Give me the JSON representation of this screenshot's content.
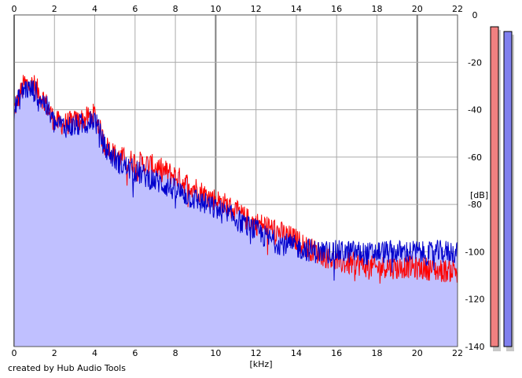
{
  "credit": "created by Hub Audio Tools",
  "colors": {
    "left_channel": "#ff0000",
    "right_channel": "#0000cc",
    "fill": "#c0c0ff",
    "grid_minor": "#aaaaaa",
    "grid_major": "#808080",
    "meter_left": "#f08080",
    "meter_right": "#8080ee"
  },
  "chart_data": {
    "type": "line",
    "xlabel": "[kHz]",
    "ylabel": "[dB]",
    "xlim": [
      0,
      22
    ],
    "ylim": [
      -140,
      0
    ],
    "x_ticks": [
      "0",
      "2",
      "4",
      "6",
      "8",
      "10",
      "12",
      "14",
      "16",
      "18",
      "20",
      "22"
    ],
    "y_ticks": [
      "0",
      "-20",
      "-40",
      "-60",
      "-80",
      "-100",
      "-120",
      "-140"
    ],
    "grid": true,
    "series": [
      {
        "color": "#ff0000",
        "x": [
          0,
          0.5,
          1,
          1.5,
          2,
          2.5,
          3,
          3.5,
          4,
          4.5,
          5,
          5.5,
          6,
          6.5,
          7,
          7.5,
          8,
          8.5,
          9,
          9.5,
          10,
          10.5,
          11,
          11.5,
          12,
          12.5,
          13,
          13.5,
          14,
          14.5,
          15,
          15.5,
          16,
          16.5,
          17,
          17.5,
          18,
          18.5,
          19,
          19.5,
          20,
          20.5,
          21,
          21.5,
          22
        ],
        "values": [
          -40,
          -29,
          -30,
          -36,
          -45,
          -46,
          -45,
          -44,
          -42,
          -55,
          -59,
          -61,
          -62,
          -63,
          -64,
          -66,
          -68,
          -71,
          -73,
          -76,
          -78,
          -80,
          -83,
          -86,
          -88,
          -89,
          -91,
          -93,
          -95,
          -98,
          -100,
          -102,
          -104,
          -105,
          -105,
          -106,
          -107,
          -106,
          -107,
          -106,
          -107,
          -107,
          -108,
          -108,
          -107
        ]
      },
      {
        "color": "#0000cc",
        "x": [
          0,
          0.5,
          1,
          1.5,
          2,
          2.5,
          3,
          3.5,
          4,
          4.5,
          5,
          5.5,
          6,
          6.5,
          7,
          7.5,
          8,
          8.5,
          9,
          9.5,
          10,
          10.5,
          11,
          11.5,
          12,
          12.5,
          13,
          13.5,
          14,
          14.5,
          15,
          15.5,
          16,
          16.5,
          17,
          17.5,
          18,
          18.5,
          19,
          19.5,
          20,
          20.5,
          21,
          21.5,
          22
        ],
        "values": [
          -40,
          -31,
          -32,
          -37,
          -46,
          -47,
          -47,
          -46,
          -44,
          -56,
          -61,
          -64,
          -66,
          -68,
          -70,
          -72,
          -74,
          -76,
          -78,
          -80,
          -82,
          -84,
          -86,
          -89,
          -91,
          -94,
          -96,
          -97,
          -98,
          -99,
          -100,
          -100,
          -100,
          -100,
          -100,
          -101,
          -100,
          -100,
          -100,
          -100,
          -100,
          -101,
          -100,
          -100,
          -100
        ]
      }
    ],
    "level_meters": [
      {
        "color": "#f08080",
        "peak": -5
      },
      {
        "color": "#8080ee",
        "peak": -7
      }
    ]
  }
}
